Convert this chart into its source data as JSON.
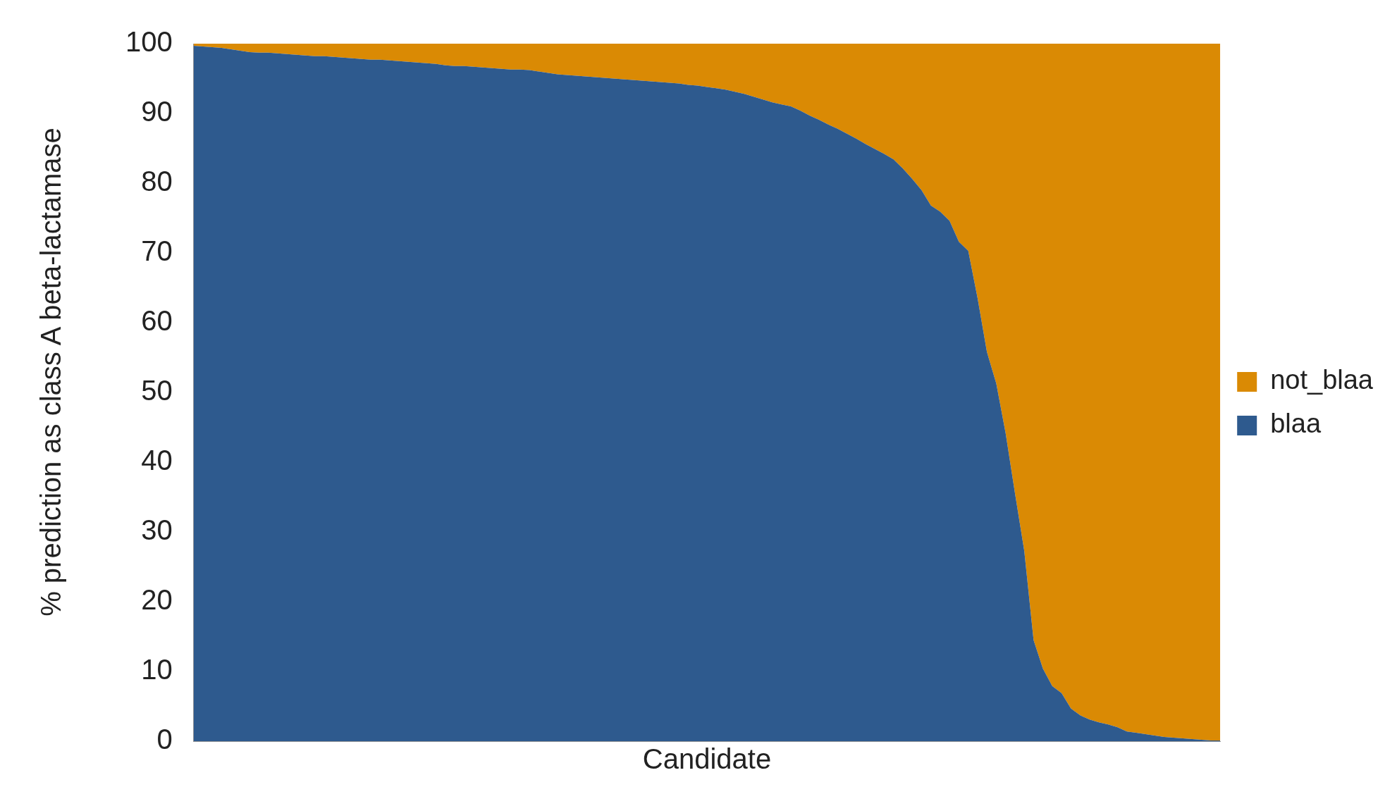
{
  "chart_data": {
    "type": "area",
    "xlabel": "Candidate",
    "ylabel": "% prediction as class A beta-lactamase",
    "categories": [
      null,
      null,
      null,
      null,
      null,
      null,
      null,
      null,
      null,
      null,
      null,
      null,
      null,
      null,
      null,
      null,
      null,
      null,
      null,
      null,
      null,
      null,
      null,
      null,
      null,
      null,
      null,
      null,
      null,
      null,
      null,
      null,
      null,
      null,
      null,
      null,
      null,
      null,
      null,
      null,
      null,
      null,
      null,
      null,
      null,
      null,
      null,
      null,
      null,
      null,
      null,
      null,
      null,
      null,
      null,
      null,
      null,
      null,
      null,
      null,
      null,
      null,
      null,
      null,
      null,
      null,
      null,
      null,
      null,
      null,
      null,
      null,
      null,
      null,
      null,
      null,
      null,
      null,
      null,
      null,
      null,
      null,
      null,
      null,
      null,
      null,
      null,
      null,
      null,
      null,
      null,
      null,
      null,
      null,
      null,
      null,
      null,
      null,
      null,
      null,
      null,
      null,
      null,
      null,
      null,
      null,
      null,
      null,
      null,
      null,
      null
    ],
    "stacked": true,
    "ylim": [
      0,
      100
    ],
    "yticks": [
      0,
      10,
      20,
      30,
      40,
      50,
      60,
      70,
      80,
      90,
      100
    ],
    "grid": false,
    "legend": "right",
    "tick_labels": "y",
    "series": [
      {
        "name": "blaa",
        "color": "#2e5a8e",
        "values": [
          99.7,
          99.6,
          99.5,
          99.4,
          99.2,
          99.0,
          98.8,
          98.7,
          98.7,
          98.6,
          98.5,
          98.4,
          98.3,
          98.2,
          98.2,
          98.1,
          98.0,
          97.9,
          97.8,
          97.7,
          97.7,
          97.6,
          97.5,
          97.4,
          97.3,
          97.2,
          97.1,
          96.9,
          96.8,
          96.8,
          96.7,
          96.6,
          96.5,
          96.4,
          96.3,
          96.3,
          96.2,
          96.0,
          95.8,
          95.6,
          95.5,
          95.4,
          95.3,
          95.2,
          95.1,
          95.0,
          94.9,
          94.8,
          94.7,
          94.6,
          94.5,
          94.4,
          94.3,
          94.1,
          94.0,
          93.8,
          93.6,
          93.4,
          93.1,
          92.8,
          92.4,
          92.0,
          91.6,
          91.3,
          91.0,
          90.4,
          89.7,
          89.1,
          88.4,
          87.8,
          87.1,
          86.4,
          85.6,
          84.9,
          84.2,
          83.4,
          82.1,
          80.6,
          79.0,
          76.8,
          75.9,
          74.6,
          71.6,
          70.3,
          63.5,
          55.8,
          51.3,
          44.2,
          35.6,
          27.3,
          14.5,
          10.4,
          7.9,
          6.9,
          4.7,
          3.7,
          3.1,
          2.7,
          2.4,
          2.0,
          1.4,
          1.2,
          1.0,
          0.8,
          0.6,
          0.5,
          0.4,
          0.3,
          0.2,
          0.1,
          0.1
        ]
      },
      {
        "name": "not_blaa",
        "color": "#da8a04",
        "values": [
          0.3,
          0.4,
          0.5,
          0.6,
          0.8,
          1.0,
          1.2,
          1.3,
          1.3,
          1.4,
          1.5,
          1.6,
          1.7,
          1.8,
          1.8,
          1.9,
          2.0,
          2.1,
          2.2,
          2.3,
          2.3,
          2.4,
          2.5,
          2.6,
          2.7,
          2.8,
          2.9,
          3.1,
          3.2,
          3.2,
          3.3,
          3.4,
          3.5,
          3.6,
          3.7,
          3.7,
          3.8,
          4.0,
          4.2,
          4.4,
          4.5,
          4.6,
          4.7,
          4.8,
          4.9,
          5.0,
          5.1,
          5.2,
          5.3,
          5.4,
          5.5,
          5.6,
          5.7,
          5.9,
          6.0,
          6.2,
          6.4,
          6.6,
          6.9,
          7.2,
          7.6,
          8.0,
          8.4,
          8.7,
          9.0,
          9.6,
          10.3,
          10.9,
          11.6,
          12.2,
          12.9,
          13.6,
          14.4,
          15.1,
          15.8,
          16.6,
          17.9,
          19.4,
          21.0,
          23.2,
          24.1,
          25.4,
          28.4,
          29.7,
          36.5,
          44.2,
          48.7,
          55.8,
          64.4,
          72.7,
          85.5,
          89.6,
          92.1,
          93.1,
          95.3,
          96.3,
          96.9,
          97.3,
          97.6,
          98.0,
          98.6,
          98.8,
          99.0,
          99.2,
          99.4,
          99.5,
          99.6,
          99.7,
          99.8,
          99.9,
          99.9
        ]
      }
    ]
  }
}
